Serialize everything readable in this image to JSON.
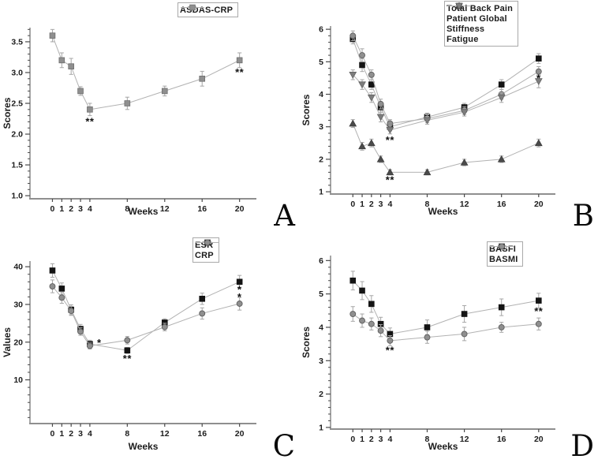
{
  "page": {
    "background": "#ffffff"
  },
  "colors": {
    "line": "#b2b2b2",
    "error_bar": "#a6a6a6",
    "axis": "#8f8f8f",
    "tick": "#4a4a4a",
    "text": "#1c1c1c",
    "black_marker": "#141414",
    "gray_marker": "#8f8f8f",
    "dark_triangle": "#4a4a4a",
    "gray_triangle": "#7d7d7d"
  },
  "chart_data": [
    {
      "type": "line",
      "panel_label": "A",
      "xlabel": "Weeks",
      "ylabel": "Scores",
      "x": [
        0,
        1,
        2,
        3,
        4,
        8,
        12,
        16,
        20
      ],
      "xlim": [
        -2.4,
        21.8
      ],
      "ylim": [
        0.95,
        3.73
      ],
      "yticks": [
        1.0,
        1.5,
        2.0,
        2.5,
        3.0,
        3.5
      ],
      "ydecimals": 1,
      "yminor_step": 0.1,
      "legend_position": "top-right",
      "series": [
        {
          "name": "ASDAS-CRP",
          "marker": "square",
          "fill": "#8f8f8f",
          "edge": "#6e6e6e",
          "values": [
            3.6,
            3.2,
            3.1,
            2.7,
            2.4,
            2.5,
            2.7,
            2.9,
            3.2
          ],
          "errors": [
            0.1,
            0.12,
            0.13,
            0.07,
            0.1,
            0.1,
            0.08,
            0.12,
            0.12
          ]
        }
      ],
      "annotations": [
        {
          "text": "**",
          "x": 4,
          "y": 2.2
        },
        {
          "text": "**",
          "x": 20,
          "y": 3.0
        }
      ]
    },
    {
      "type": "line",
      "panel_label": "B",
      "xlabel": "Weeks",
      "ylabel": "Scores",
      "x": [
        0,
        1,
        2,
        3,
        4,
        8,
        12,
        16,
        20
      ],
      "xlim": [
        -2.4,
        21.8
      ],
      "ylim": [
        0.93,
        6.1
      ],
      "yticks": [
        1,
        2,
        3,
        4,
        5,
        6
      ],
      "ydecimals": 0,
      "yminor_step": 0.2,
      "legend_position": "top-right",
      "series": [
        {
          "name": "Total Back Pain",
          "marker": "square",
          "fill": "#141414",
          "edge": "#141414",
          "values": [
            5.7,
            4.9,
            4.3,
            3.6,
            3.0,
            3.3,
            3.6,
            4.3,
            5.1
          ],
          "errors": [
            0.15,
            0.2,
            0.15,
            0.15,
            0.12,
            0.12,
            0.12,
            0.15,
            0.15
          ]
        },
        {
          "name": "Patient Global",
          "marker": "circle",
          "fill": "#8f8f8f",
          "edge": "#5e5e5e",
          "values": [
            5.8,
            5.2,
            4.6,
            3.7,
            3.1,
            3.25,
            3.5,
            4.0,
            4.7
          ],
          "errors": [
            0.15,
            0.2,
            0.15,
            0.15,
            0.12,
            0.12,
            0.12,
            0.15,
            0.15
          ]
        },
        {
          "name": "Stiffness",
          "marker": "triangle-up",
          "fill": "#4a4a4a",
          "edge": "#3a3a3a",
          "values": [
            3.1,
            2.4,
            2.5,
            2.0,
            1.6,
            1.6,
            1.9,
            2.0,
            2.5
          ],
          "errors": [
            0.12,
            0.12,
            0.12,
            0.1,
            0.08,
            0.08,
            0.1,
            0.1,
            0.12
          ]
        },
        {
          "name": "Fatigue",
          "marker": "triangle-down",
          "fill": "#7d7d7d",
          "edge": "#5e5e5e",
          "values": [
            4.6,
            4.3,
            3.9,
            3.3,
            2.9,
            3.2,
            3.45,
            3.9,
            4.4
          ],
          "errors": [
            0.15,
            0.15,
            0.15,
            0.15,
            0.12,
            0.12,
            0.12,
            0.15,
            0.2
          ]
        }
      ],
      "annotations": [
        {
          "text": "**",
          "x": 4,
          "y": 2.58
        },
        {
          "text": "**",
          "x": 4,
          "y": 1.36
        },
        {
          "text": "*",
          "x": 20,
          "y": 4.48
        }
      ]
    },
    {
      "type": "line",
      "panel_label": "C",
      "xlabel": "Weeks",
      "ylabel": "Values",
      "x": [
        0,
        1,
        2,
        3,
        4,
        8,
        12,
        16,
        20
      ],
      "xlim": [
        -2.4,
        21.8
      ],
      "ylim": [
        -1.6,
        41.5
      ],
      "yticks": [
        10,
        20,
        30,
        40
      ],
      "ydecimals": 0,
      "yminor_step": 2,
      "legend_position": "top-right",
      "series": [
        {
          "name": "ESR",
          "marker": "square",
          "fill": "#141414",
          "edge": "#141414",
          "values": [
            39,
            34.2,
            28.6,
            23.5,
            19.5,
            17.8,
            25.2,
            31.5,
            36
          ],
          "errors": [
            1.8,
            1.5,
            1.3,
            1.2,
            1.0,
            0.8,
            1.0,
            1.5,
            1.7
          ]
        },
        {
          "name": "CRP",
          "marker": "circle",
          "fill": "#8f8f8f",
          "edge": "#5e5e5e",
          "values": [
            34.8,
            31.8,
            28.3,
            22.8,
            19.0,
            20.5,
            24.0,
            27.6,
            30.2
          ],
          "errors": [
            1.7,
            1.5,
            1.2,
            1.0,
            0.8,
            1.0,
            1.0,
            1.5,
            1.7
          ]
        }
      ],
      "annotations": [
        {
          "text": "*",
          "x": 5.0,
          "y": 19.7
        },
        {
          "text": "**",
          "x": 8,
          "y": 15.6
        },
        {
          "text": "*",
          "x": 20,
          "y": 33.9
        },
        {
          "text": "*",
          "x": 20,
          "y": 31.9
        }
      ]
    },
    {
      "type": "line",
      "panel_label": "D",
      "xlabel": "Weeks",
      "ylabel": "Scores",
      "x": [
        0,
        1,
        2,
        3,
        4,
        8,
        12,
        16,
        20
      ],
      "xlim": [
        -2.4,
        21.8
      ],
      "ylim": [
        0.95,
        6.15
      ],
      "yticks": [
        1,
        2,
        3,
        4,
        5,
        6
      ],
      "ydecimals": 0,
      "yminor_step": 0.2,
      "legend_position": "top-right",
      "series": [
        {
          "name": "BASFI",
          "marker": "square",
          "fill": "#141414",
          "edge": "#141414",
          "values": [
            5.4,
            5.1,
            4.7,
            4.1,
            3.8,
            4.0,
            4.4,
            4.6,
            4.8
          ],
          "errors": [
            0.28,
            0.27,
            0.25,
            0.2,
            0.18,
            0.22,
            0.25,
            0.25,
            0.22
          ]
        },
        {
          "name": "BASMI",
          "marker": "circle",
          "fill": "#8f8f8f",
          "edge": "#5e5e5e",
          "values": [
            4.4,
            4.2,
            4.1,
            3.9,
            3.6,
            3.7,
            3.8,
            4.0,
            4.1
          ],
          "errors": [
            0.22,
            0.2,
            0.18,
            0.18,
            0.15,
            0.18,
            0.2,
            0.15,
            0.18
          ]
        }
      ],
      "annotations": [
        {
          "text": "**",
          "x": 4,
          "y": 3.3
        },
        {
          "text": "**",
          "x": 20,
          "y": 4.47
        }
      ]
    }
  ]
}
